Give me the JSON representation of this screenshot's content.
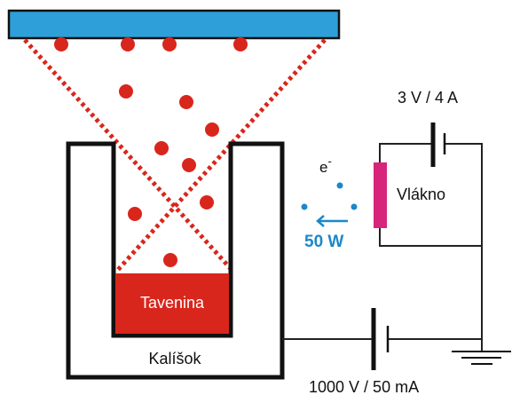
{
  "labels": {
    "melt": "Tavenina",
    "crucible": "Kalíšok",
    "filament": "Vlákno",
    "electron": "e",
    "electron_charge": "-",
    "power": "50 W",
    "filament_supply": "3 V / 4 A",
    "high_voltage_supply": "1000 V / 50 mA"
  },
  "colors": {
    "substrate": "#2e9fd8",
    "particle": "#d9261c",
    "melt": "#d9261c",
    "filament": "#d6257a",
    "electron": "#1a88c9",
    "wire": "#222222"
  }
}
